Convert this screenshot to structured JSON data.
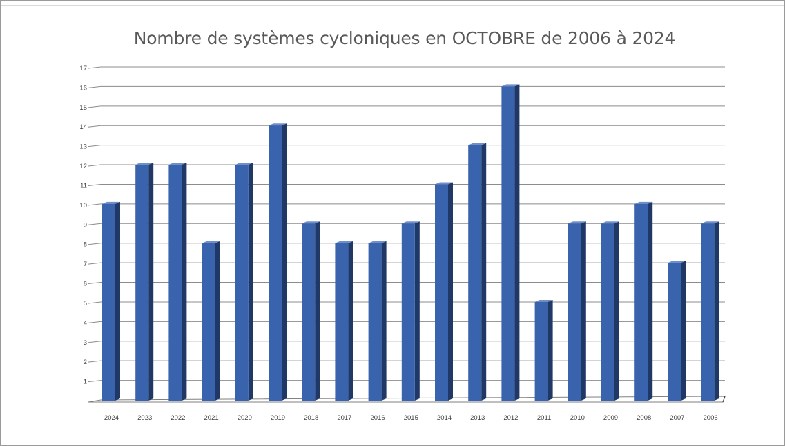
{
  "chart_data": {
    "type": "bar",
    "title": "Nombre de systèmes cycloniques en OCTOBRE de 2006 à 2024",
    "xlabel": "",
    "ylabel": "",
    "categories": [
      "2024",
      "2023",
      "2022",
      "2021",
      "2020",
      "2019",
      "2018",
      "2017",
      "2016",
      "2015",
      "2014",
      "2013",
      "2012",
      "2011",
      "2010",
      "2009",
      "2008",
      "2007",
      "2006"
    ],
    "values": [
      10,
      12,
      12,
      8,
      12,
      14,
      9,
      8,
      8,
      9,
      11,
      13,
      16,
      5,
      9,
      9,
      10,
      7,
      9
    ],
    "ylim": [
      0,
      17
    ],
    "yticks": [
      1,
      2,
      3,
      4,
      5,
      6,
      7,
      8,
      9,
      10,
      11,
      12,
      13,
      14,
      15,
      16,
      17
    ],
    "grid": true,
    "legend": "none",
    "bar_style": "3d",
    "colors": {
      "bar_front": "#3a63ad",
      "bar_side": "#1f3866",
      "bar_top": "#6f8fcb",
      "grid": "#8c8c8c",
      "text": "#595959"
    }
  }
}
